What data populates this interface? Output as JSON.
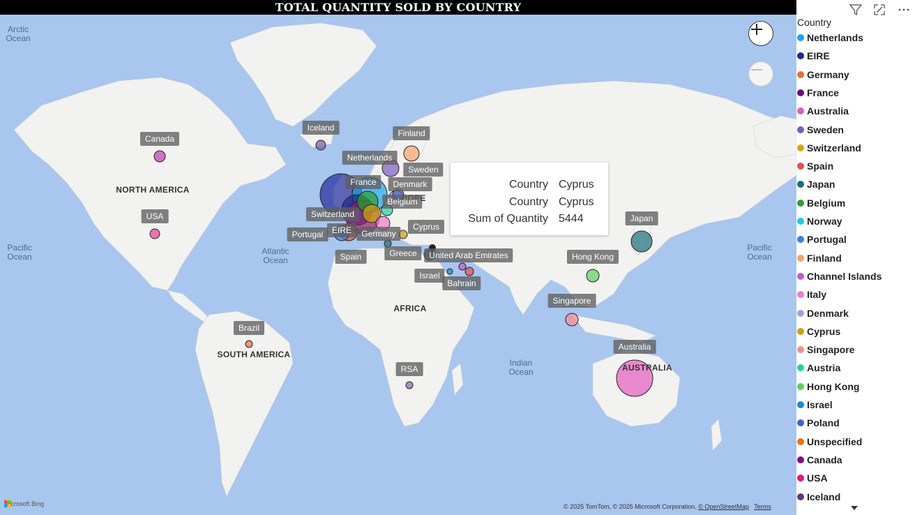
{
  "title": "TOTAL QUANTITY SOLD BY COUNTRY",
  "toolbar": {
    "filter_icon": "filter-icon",
    "focus_icon": "focus-mode-icon",
    "more_icon": "more-options-icon"
  },
  "map": {
    "ocean_labels": [
      {
        "id": "arctic",
        "text": "Arctic\nOcean"
      },
      {
        "id": "pacific-west",
        "text": "Pacific\nOcean"
      },
      {
        "id": "atlantic",
        "text": "Atlantic\nOcean"
      },
      {
        "id": "pacific-east",
        "text": "Pacific\nOcean"
      },
      {
        "id": "indian",
        "text": "Indian\nOcean"
      }
    ],
    "region_labels": [
      {
        "id": "north-america",
        "text": "NORTH AMERICA"
      },
      {
        "id": "south-america",
        "text": "SOUTH AMERICA"
      },
      {
        "id": "africa",
        "text": "AFRICA"
      },
      {
        "id": "europe",
        "text": "ROPE"
      },
      {
        "id": "australia",
        "text": "AUSTRALIA"
      }
    ],
    "city_labels": [
      "Iceland",
      "Canada",
      "Finland",
      "Netherlands",
      "Sweden",
      "France",
      "Denmark",
      "Belgium",
      "Switzerland",
      "EIRE",
      "Portugal",
      "Germany",
      "Cyprus",
      "Greece",
      "Spain",
      "United Arab Emirates",
      "Israel",
      "Bahrain",
      "Japan",
      "Hong Kong",
      "Singapore",
      "USA",
      "Brazil",
      "RSA",
      "Australia"
    ],
    "bubbles": [
      {
        "country": "France",
        "color": "#1f2a9b"
      },
      {
        "country": "Netherlands",
        "color": "#1aa3f0"
      },
      {
        "country": "EIRE",
        "color": "#1f2a8c"
      },
      {
        "country": "Germany",
        "color": "#8b1a6b"
      },
      {
        "country": "Belgium",
        "color": "#2ca02c"
      },
      {
        "country": "Switzerland",
        "color": "#d6a70a"
      },
      {
        "country": "Spain",
        "color": "#e05050"
      },
      {
        "country": "Portugal",
        "color": "#3a80e8"
      },
      {
        "country": "Sweden",
        "color": "#7a5cc4"
      },
      {
        "country": "Denmark",
        "color": "#b09ae8"
      },
      {
        "country": "Italy",
        "color": "#f27bc9"
      },
      {
        "country": "Austria",
        "color": "#1fd1a8"
      },
      {
        "country": "Poland",
        "color": "#4363c4"
      },
      {
        "country": "Finland",
        "color": "#f5a46a"
      },
      {
        "country": "Iceland",
        "color": "#7e5aa0"
      },
      {
        "country": "Canada",
        "color": "#c23bb0"
      },
      {
        "country": "USA",
        "color": "#e83a9a"
      },
      {
        "country": "Brazil",
        "color": "#f06b3a"
      },
      {
        "country": "RSA",
        "color": "#8a6aa8"
      },
      {
        "country": "Australia",
        "color": "#e45bbf"
      },
      {
        "country": "Japan",
        "color": "#1d6c7c"
      },
      {
        "country": "Hong Kong",
        "color": "#5ecf5e"
      },
      {
        "country": "Singapore",
        "color": "#f59090"
      },
      {
        "country": "Cyprus",
        "color": "#c9a210"
      },
      {
        "country": "Greece",
        "color": "#1d6c7c"
      },
      {
        "country": "United Arab Emirates",
        "color": "#1d6c7c"
      },
      {
        "country": "Israel",
        "color": "#1d8ac7"
      },
      {
        "country": "Bahrain",
        "color": "#e05050"
      },
      {
        "country": "Channel Islands",
        "color": "#c45cd1"
      }
    ]
  },
  "zoom": {
    "in_label": "+",
    "out_label": "−"
  },
  "tooltip": {
    "rows": [
      {
        "key": "Country",
        "value": "Cyprus"
      },
      {
        "key": "Country",
        "value": "Cyprus"
      },
      {
        "key": "Sum of Quantity",
        "value": "5444"
      }
    ]
  },
  "attribution": {
    "logo_text": "Microsoft Bing",
    "copyright": "© 2025 TomTom, © 2025 Microsoft Corporation,",
    "osm": "© OpenStreetMap",
    "terms": "Terms"
  },
  "legend": {
    "title": "Country",
    "items": [
      {
        "label": "Netherlands",
        "color": "#1aa3f0"
      },
      {
        "label": "EIRE",
        "color": "#1f2a8c"
      },
      {
        "label": "Germany",
        "color": "#f06b3a"
      },
      {
        "label": "France",
        "color": "#6b0a8a"
      },
      {
        "label": "Australia",
        "color": "#e45bbf"
      },
      {
        "label": "Sweden",
        "color": "#7a5cc4"
      },
      {
        "label": "Switzerland",
        "color": "#d6a70a"
      },
      {
        "label": "Spain",
        "color": "#e05050"
      },
      {
        "label": "Japan",
        "color": "#1d6c7c"
      },
      {
        "label": "Belgium",
        "color": "#2ca02c"
      },
      {
        "label": "Norway",
        "color": "#22c6f2"
      },
      {
        "label": "Portugal",
        "color": "#3a80e8"
      },
      {
        "label": "Finland",
        "color": "#f5a46a"
      },
      {
        "label": "Channel Islands",
        "color": "#c45cd1"
      },
      {
        "label": "Italy",
        "color": "#f27bc9"
      },
      {
        "label": "Denmark",
        "color": "#b09ae8"
      },
      {
        "label": "Cyprus",
        "color": "#c9a210"
      },
      {
        "label": "Singapore",
        "color": "#f59090"
      },
      {
        "label": "Austria",
        "color": "#1fd1a8"
      },
      {
        "label": "Hong Kong",
        "color": "#5ecf5e"
      },
      {
        "label": "Israel",
        "color": "#1d8ac7"
      },
      {
        "label": "Poland",
        "color": "#4363c4"
      },
      {
        "label": "Unspecified",
        "color": "#f27010"
      },
      {
        "label": "Canada",
        "color": "#8a0a8a"
      },
      {
        "label": "USA",
        "color": "#e8157a"
      },
      {
        "label": "Iceland",
        "color": "#5a3a8a"
      }
    ]
  }
}
